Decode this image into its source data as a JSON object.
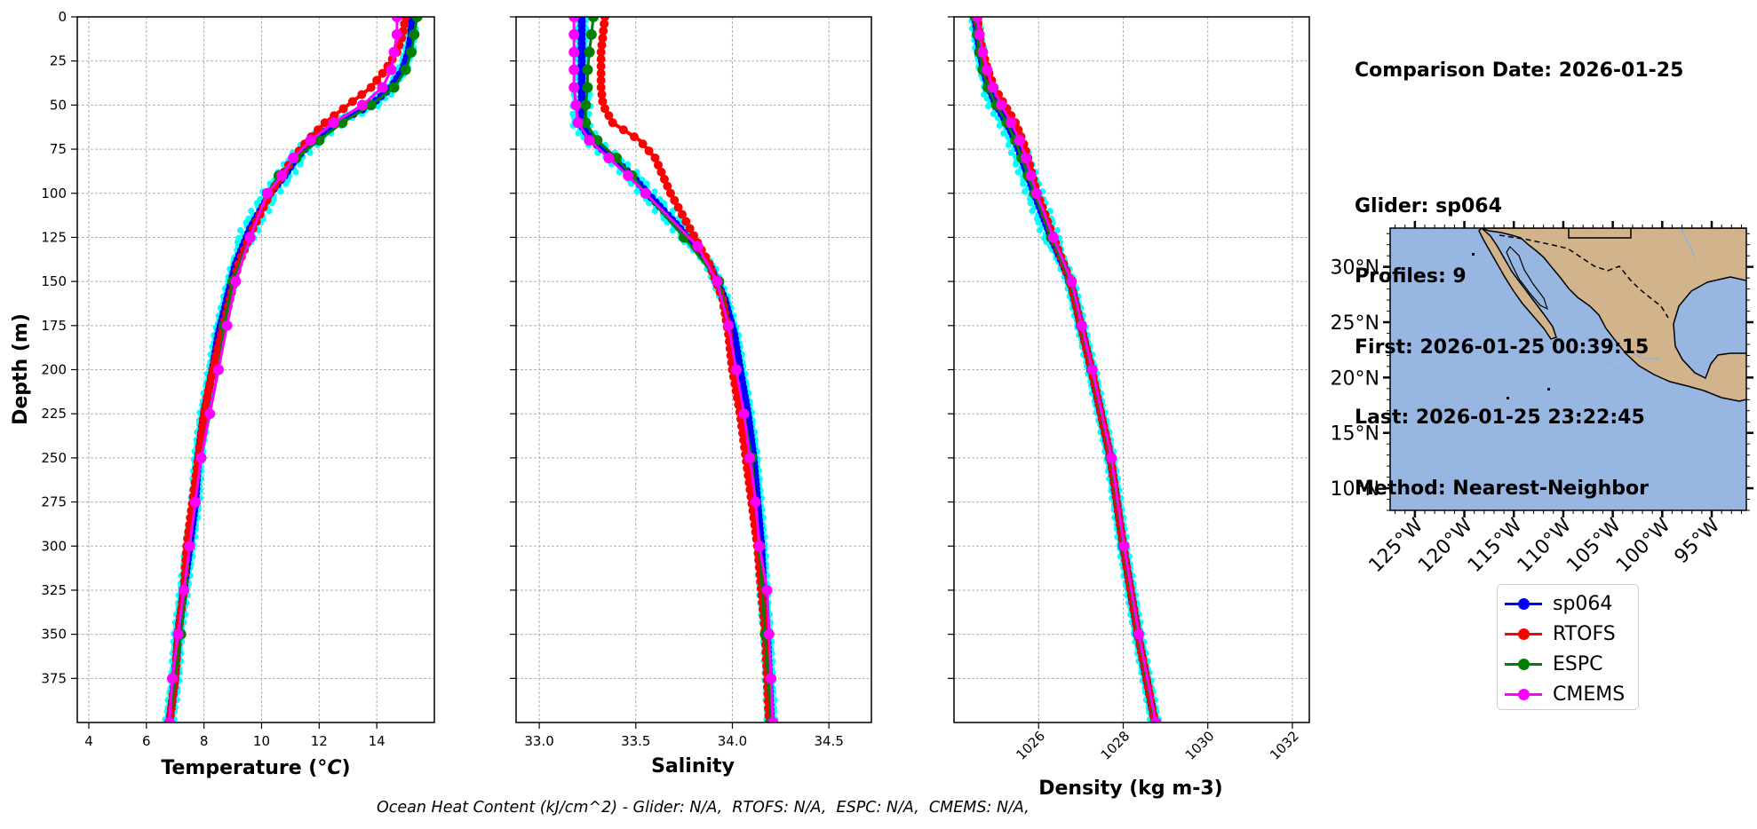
{
  "chart_data": [
    {
      "type": "line",
      "xlabel": "Temperature (°C)",
      "ylabel": "Depth (m)",
      "xlim": [
        3.6,
        16.0
      ],
      "ylim": [
        400,
        0
      ],
      "x_ticks": [
        4,
        6,
        8,
        10,
        12,
        14
      ],
      "y_ticks": [
        0,
        25,
        50,
        75,
        100,
        125,
        150,
        175,
        200,
        225,
        250,
        275,
        300,
        325,
        350,
        375
      ],
      "grid": true,
      "series": [
        {
          "name": "sp064",
          "color": "#0000ff",
          "markers": "dense",
          "depth": [
            0,
            10,
            20,
            30,
            40,
            50,
            60,
            70,
            80,
            90,
            100,
            120,
            140,
            160,
            180,
            200,
            225,
            250,
            275,
            300,
            325,
            350,
            375,
            400
          ],
          "values": [
            15.2,
            15.2,
            15.1,
            14.9,
            14.5,
            13.8,
            12.6,
            11.8,
            11.2,
            10.8,
            10.3,
            9.6,
            9.1,
            8.8,
            8.5,
            8.3,
            8.0,
            7.8,
            7.7,
            7.5,
            7.3,
            7.1,
            7.0,
            6.8
          ]
        },
        {
          "name": "RTOFS",
          "color": "#ff0000",
          "markers": "dense",
          "depth": [
            0,
            10,
            20,
            30,
            40,
            50,
            60,
            70,
            80,
            90,
            100,
            120,
            140,
            160,
            180,
            200,
            225,
            250,
            275,
            300,
            325,
            350,
            375,
            400
          ],
          "values": [
            15.0,
            14.9,
            14.7,
            14.3,
            13.8,
            13.0,
            12.2,
            11.6,
            11.1,
            10.7,
            10.3,
            9.7,
            9.2,
            8.9,
            8.6,
            8.3,
            8.0,
            7.8,
            7.6,
            7.4,
            7.3,
            7.1,
            7.0,
            6.8
          ]
        },
        {
          "name": "ESPC",
          "color": "#008000",
          "markers": "sparse",
          "depth": [
            0,
            10,
            20,
            30,
            40,
            50,
            60,
            70,
            80,
            90,
            100,
            125,
            150,
            175,
            200,
            250,
            300,
            350,
            400
          ],
          "values": [
            15.4,
            15.3,
            15.2,
            15.0,
            14.6,
            13.8,
            12.8,
            12.0,
            11.2,
            10.6,
            10.2,
            9.6,
            9.0,
            8.7,
            8.5,
            7.9,
            7.5,
            7.2,
            6.8
          ]
        },
        {
          "name": "CMEMS",
          "color": "#ff00ff",
          "markers": "sparse",
          "depth": [
            0,
            10,
            20,
            30,
            40,
            50,
            60,
            70,
            80,
            90,
            100,
            125,
            150,
            175,
            200,
            225,
            250,
            275,
            300,
            325,
            350,
            375,
            400
          ],
          "values": [
            14.7,
            14.7,
            14.6,
            14.5,
            14.2,
            13.5,
            12.5,
            11.7,
            11.1,
            10.7,
            10.2,
            9.6,
            9.1,
            8.8,
            8.5,
            8.2,
            7.9,
            7.7,
            7.5,
            7.3,
            7.1,
            6.9,
            6.8
          ]
        }
      ]
    },
    {
      "type": "line",
      "xlabel": "Salinity",
      "xlim": [
        32.88,
        34.72
      ],
      "ylim": [
        400,
        0
      ],
      "x_ticks": [
        33.0,
        33.5,
        34.0,
        34.5
      ],
      "grid": true,
      "series": [
        {
          "name": "sp064",
          "color": "#0000ff",
          "markers": "dense",
          "depth": [
            0,
            10,
            20,
            30,
            40,
            50,
            60,
            70,
            80,
            90,
            100,
            120,
            140,
            160,
            180,
            200,
            225,
            250,
            275,
            300,
            325,
            350,
            375,
            400
          ],
          "values": [
            33.22,
            33.22,
            33.22,
            33.22,
            33.22,
            33.22,
            33.21,
            33.27,
            33.38,
            33.48,
            33.56,
            33.73,
            33.88,
            33.96,
            34.01,
            34.04,
            34.08,
            34.11,
            34.13,
            34.15,
            34.16,
            34.18,
            34.19,
            34.2
          ]
        },
        {
          "name": "RTOFS",
          "color": "#ff0000",
          "markers": "dense",
          "depth": [
            0,
            10,
            20,
            30,
            40,
            50,
            60,
            70,
            80,
            90,
            100,
            120,
            140,
            160,
            180,
            200,
            225,
            250,
            275,
            300,
            325,
            350,
            375,
            400
          ],
          "values": [
            33.34,
            33.33,
            33.32,
            33.32,
            33.32,
            33.33,
            33.38,
            33.52,
            33.6,
            33.64,
            33.68,
            33.78,
            33.88,
            33.95,
            33.98,
            34.0,
            34.04,
            34.07,
            34.1,
            34.13,
            34.15,
            34.17,
            34.18,
            34.19
          ]
        },
        {
          "name": "ESPC",
          "color": "#008000",
          "markers": "sparse",
          "depth": [
            0,
            10,
            20,
            30,
            40,
            50,
            60,
            70,
            80,
            90,
            100,
            125,
            150,
            175,
            200,
            250,
            300,
            350,
            400
          ],
          "values": [
            33.28,
            33.27,
            33.26,
            33.25,
            33.25,
            33.24,
            33.24,
            33.3,
            33.4,
            33.48,
            33.55,
            33.75,
            33.93,
            33.98,
            34.02,
            34.1,
            34.14,
            34.17,
            34.2
          ]
        },
        {
          "name": "CMEMS",
          "color": "#ff00ff",
          "markers": "sparse",
          "depth": [
            0,
            10,
            20,
            30,
            40,
            50,
            60,
            70,
            80,
            90,
            100,
            130,
            150,
            175,
            200,
            225,
            250,
            275,
            300,
            325,
            350,
            375,
            400
          ],
          "values": [
            33.18,
            33.18,
            33.18,
            33.18,
            33.18,
            33.19,
            33.2,
            33.26,
            33.36,
            33.46,
            33.55,
            33.82,
            33.92,
            33.98,
            34.02,
            34.06,
            34.09,
            34.12,
            34.14,
            34.18,
            34.19,
            34.2,
            34.21
          ]
        }
      ]
    },
    {
      "type": "line",
      "xlabel": "Density (kg m-3)",
      "xlim": [
        1024.0,
        1032.4
      ],
      "ylim": [
        400,
        0
      ],
      "x_ticks": [
        1026,
        1028,
        1030,
        1032
      ],
      "grid": true,
      "series": [
        {
          "name": "sp064",
          "color": "#0000ff",
          "markers": "dense",
          "depth": [
            0,
            10,
            20,
            30,
            40,
            50,
            60,
            70,
            80,
            90,
            100,
            125,
            150,
            175,
            200,
            250,
            300,
            350,
            400
          ],
          "values": [
            1024.5,
            1024.55,
            1024.62,
            1024.7,
            1024.82,
            1025.0,
            1025.25,
            1025.45,
            1025.6,
            1025.75,
            1025.9,
            1026.3,
            1026.75,
            1027.0,
            1027.25,
            1027.7,
            1028.0,
            1028.35,
            1028.75
          ]
        },
        {
          "name": "RTOFS",
          "color": "#ff0000",
          "markers": "dense",
          "depth": [
            0,
            10,
            20,
            30,
            40,
            50,
            60,
            70,
            80,
            90,
            100,
            125,
            150,
            175,
            200,
            250,
            300,
            350,
            400
          ],
          "values": [
            1024.55,
            1024.6,
            1024.68,
            1024.8,
            1024.95,
            1025.2,
            1025.45,
            1025.62,
            1025.75,
            1025.85,
            1025.97,
            1026.35,
            1026.75,
            1027.0,
            1027.25,
            1027.7,
            1028.0,
            1028.35,
            1028.75
          ]
        },
        {
          "name": "ESPC",
          "color": "#008000",
          "markers": "sparse",
          "depth": [
            0,
            10,
            20,
            30,
            40,
            50,
            60,
            70,
            80,
            90,
            100,
            125,
            150,
            175,
            200,
            250,
            300,
            350,
            400
          ],
          "values": [
            1024.5,
            1024.55,
            1024.6,
            1024.68,
            1024.8,
            1025.0,
            1025.25,
            1025.45,
            1025.6,
            1025.75,
            1025.9,
            1026.3,
            1026.75,
            1027.0,
            1027.25,
            1027.7,
            1028.0,
            1028.35,
            1028.75
          ]
        },
        {
          "name": "CMEMS",
          "color": "#ff00ff",
          "markers": "sparse",
          "depth": [
            0,
            10,
            20,
            30,
            40,
            50,
            60,
            70,
            80,
            90,
            100,
            125,
            150,
            175,
            200,
            250,
            300,
            350,
            400
          ],
          "values": [
            1024.55,
            1024.6,
            1024.68,
            1024.78,
            1024.92,
            1025.12,
            1025.35,
            1025.55,
            1025.7,
            1025.82,
            1025.95,
            1026.35,
            1026.78,
            1027.02,
            1027.27,
            1027.72,
            1028.02,
            1028.37,
            1028.77
          ]
        }
      ]
    },
    {
      "type": "map",
      "lon_range": [
        -127.5,
        -91.5
      ],
      "lat_range": [
        8.0,
        33.5
      ],
      "lon_ticks": [
        -125,
        -120,
        -115,
        -110,
        -105,
        -100,
        -95
      ],
      "lon_tick_labels": [
        "125°W",
        "120°W",
        "115°W",
        "110°W",
        "105°W",
        "100°W",
        "95°W"
      ],
      "lat_ticks": [
        10,
        15,
        20,
        25,
        30
      ],
      "lat_tick_labels": [
        "10°N",
        "15°N",
        "20°N",
        "25°N",
        "30°N"
      ],
      "ocean_color": "#97b6e1",
      "land_color": "#d2b48c"
    }
  ],
  "info": {
    "comparison": "Comparison Date: 2026-01-25",
    "glider": "Glider: sp064",
    "profiles": "Profiles: 9",
    "first": "First: 2026-01-25 00:39:15",
    "last": "Last: 2026-01-25 23:22:45",
    "method": "Method: Nearest-Neighbor"
  },
  "legend": [
    {
      "label": "sp064",
      "color": "#0000ff"
    },
    {
      "label": "RTOFS",
      "color": "#ff0000"
    },
    {
      "label": "ESPC",
      "color": "#008000"
    },
    {
      "label": "CMEMS",
      "color": "#ff00ff"
    }
  ],
  "footer": "Ocean Heat Content (kJ/cm^2) - Glider: N/A,  RTOFS: N/A,  ESPC: N/A,  CMEMS: N/A,"
}
